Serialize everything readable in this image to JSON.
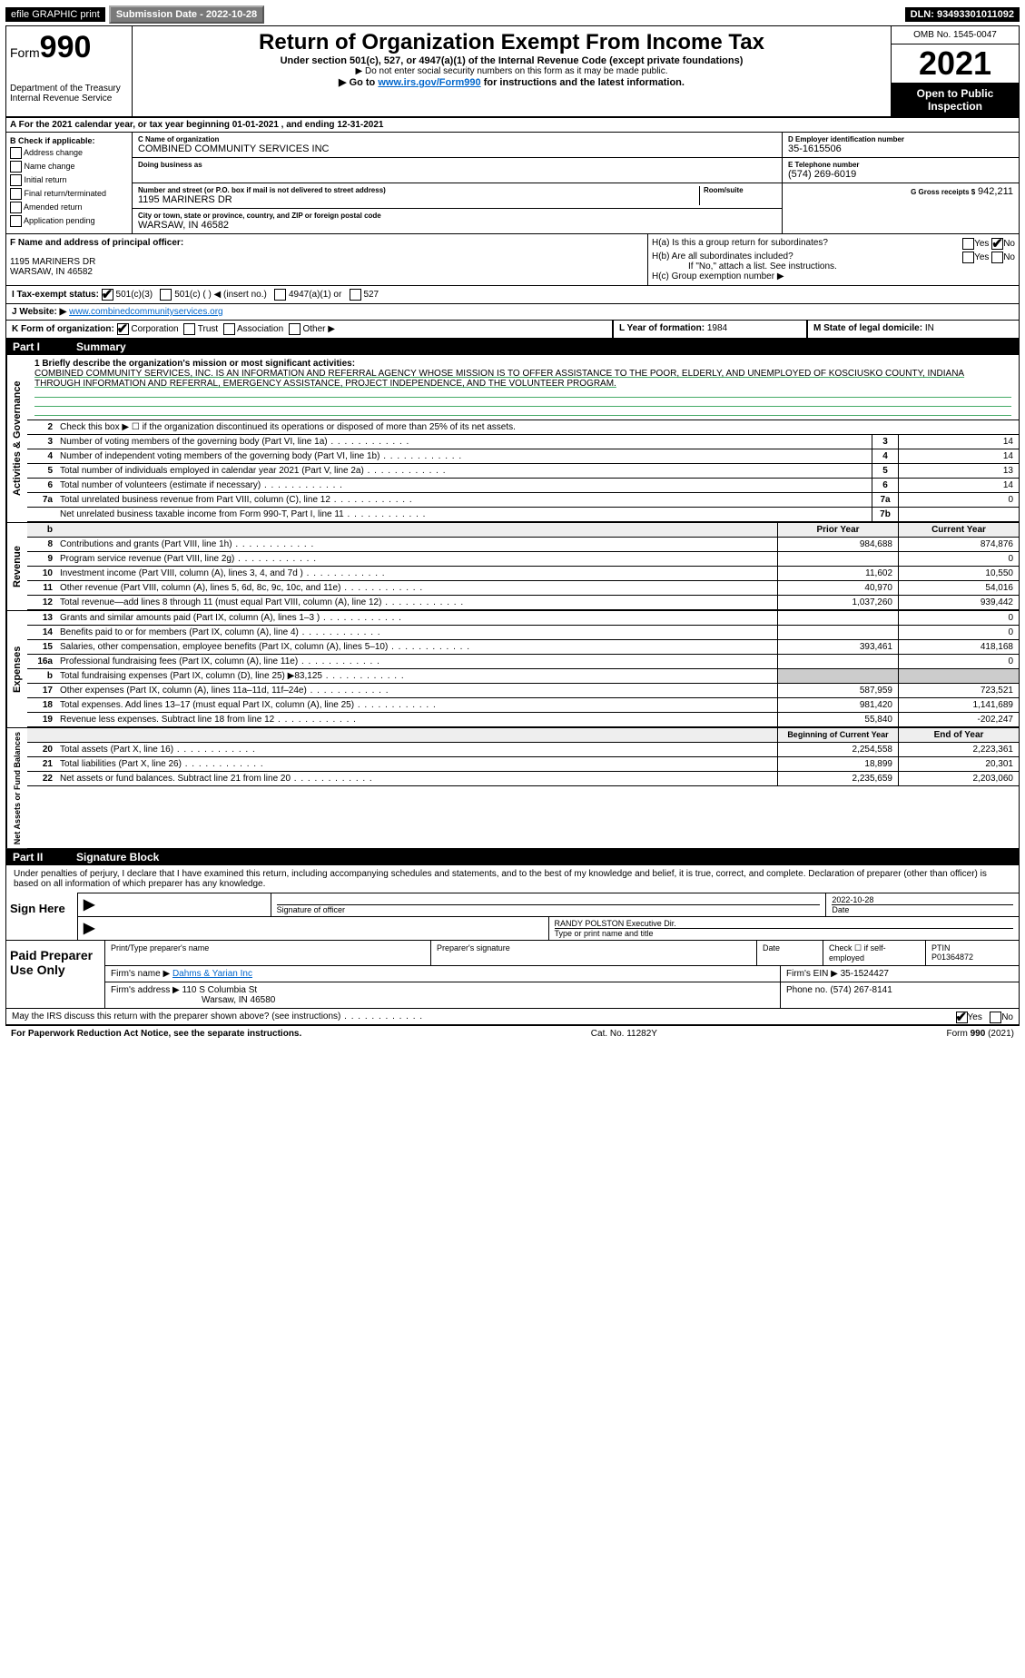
{
  "topbar": {
    "efile": "efile GRAPHIC print",
    "submission_btn": "Submission Date - 2022-10-28",
    "dln": "DLN: 93493301011092"
  },
  "header": {
    "form_prefix": "Form",
    "form_num": "990",
    "dept": "Department of the Treasury",
    "irs": "Internal Revenue Service",
    "title": "Return of Organization Exempt From Income Tax",
    "subtitle": "Under section 501(c), 527, or 4947(a)(1) of the Internal Revenue Code (except private foundations)",
    "note1": "▶ Do not enter social security numbers on this form as it may be made public.",
    "note2_prefix": "▶ Go to ",
    "note2_link": "www.irs.gov/Form990",
    "note2_suffix": " for instructions and the latest information.",
    "omb": "OMB No. 1545-0047",
    "year": "2021",
    "open_public": "Open to Public Inspection"
  },
  "section_a": "A For the 2021 calendar year, or tax year beginning 01-01-2021    , and ending 12-31-2021",
  "box_b": {
    "title": "B Check if applicable:",
    "items": [
      "Address change",
      "Name change",
      "Initial return",
      "Final return/terminated",
      "Amended return",
      "Application pending"
    ]
  },
  "box_c": {
    "label_name": "C Name of organization",
    "name": "COMBINED COMMUNITY SERVICES INC",
    "dba_label": "Doing business as",
    "addr_label": "Number and street (or P.O. box if mail is not delivered to street address)",
    "room_label": "Room/suite",
    "addr": "1195 MARINERS DR",
    "city_label": "City or town, state or province, country, and ZIP or foreign postal code",
    "city": "WARSAW, IN  46582"
  },
  "box_d": {
    "label": "D Employer identification number",
    "val": "35-1615506"
  },
  "box_e": {
    "label": "E Telephone number",
    "val": "(574) 269-6019"
  },
  "box_g": {
    "label": "G Gross receipts $",
    "val": "942,211"
  },
  "box_f": {
    "label": "F Name and address of principal officer:",
    "line1": "1195 MARINERS DR",
    "line2": "WARSAW, IN  46582"
  },
  "box_h": {
    "ha": "H(a)  Is this a group return for subordinates?",
    "hb": "H(b)  Are all subordinates included?",
    "hb_note": "If \"No,\" attach a list. See instructions.",
    "hc": "H(c)  Group exemption number ▶",
    "yes": "Yes",
    "no": "No"
  },
  "box_i": {
    "label": "I   Tax-exempt status:",
    "opts": [
      "501(c)(3)",
      "501(c) (   ) ◀ (insert no.)",
      "4947(a)(1) or",
      "527"
    ]
  },
  "box_j": {
    "label": "J   Website: ▶",
    "val": "www.combinedcommunityservices.org"
  },
  "box_k": {
    "label": "K Form of organization:",
    "opts": [
      "Corporation",
      "Trust",
      "Association",
      "Other ▶"
    ]
  },
  "box_l": {
    "label": "L Year of formation:",
    "val": "1984"
  },
  "box_m": {
    "label": "M State of legal domicile:",
    "val": "IN"
  },
  "part1": {
    "num": "Part I",
    "title": "Summary"
  },
  "mission": {
    "label": "1 Briefly describe the organization's mission or most significant activities:",
    "text": "COMBINED COMMUNITY SERVICES, INC. IS AN INFORMATION AND REFERRAL AGENCY WHOSE MISSION IS TO OFFER ASSISTANCE TO THE POOR, ELDERLY, AND UNEMPLOYED OF KOSCIUSKO COUNTY, INDIANA THROUGH INFORMATION AND REFERRAL, EMERGENCY ASSISTANCE, PROJECT INDEPENDENCE, AND THE VOLUNTEER PROGRAM."
  },
  "sidelabels": {
    "activities": "Activities & Governance",
    "revenue": "Revenue",
    "expenses": "Expenses",
    "netassets": "Net Assets or Fund Balances"
  },
  "gov_rows": [
    {
      "n": "2",
      "desc": "Check this box ▶ ☐  if the organization discontinued its operations or disposed of more than 25% of its net assets."
    },
    {
      "n": "3",
      "desc": "Number of voting members of the governing body (Part VI, line 1a)",
      "box": "3",
      "val": "14"
    },
    {
      "n": "4",
      "desc": "Number of independent voting members of the governing body (Part VI, line 1b)",
      "box": "4",
      "val": "14"
    },
    {
      "n": "5",
      "desc": "Total number of individuals employed in calendar year 2021 (Part V, line 2a)",
      "box": "5",
      "val": "13"
    },
    {
      "n": "6",
      "desc": "Total number of volunteers (estimate if necessary)",
      "box": "6",
      "val": "14"
    },
    {
      "n": "7a",
      "desc": "Total unrelated business revenue from Part VIII, column (C), line 12",
      "box": "7a",
      "val": "0"
    },
    {
      "n": "",
      "desc": "Net unrelated business taxable income from Form 990-T, Part I, line 11",
      "box": "7b",
      "val": ""
    }
  ],
  "col_hdr": {
    "b": "b",
    "prior": "Prior Year",
    "current": "Current Year"
  },
  "rev_rows": [
    {
      "n": "8",
      "desc": "Contributions and grants (Part VIII, line 1h)",
      "prior": "984,688",
      "cur": "874,876"
    },
    {
      "n": "9",
      "desc": "Program service revenue (Part VIII, line 2g)",
      "prior": "",
      "cur": "0"
    },
    {
      "n": "10",
      "desc": "Investment income (Part VIII, column (A), lines 3, 4, and 7d )",
      "prior": "11,602",
      "cur": "10,550"
    },
    {
      "n": "11",
      "desc": "Other revenue (Part VIII, column (A), lines 5, 6d, 8c, 9c, 10c, and 11e)",
      "prior": "40,970",
      "cur": "54,016"
    },
    {
      "n": "12",
      "desc": "Total revenue—add lines 8 through 11 (must equal Part VIII, column (A), line 12)",
      "prior": "1,037,260",
      "cur": "939,442"
    }
  ],
  "exp_rows": [
    {
      "n": "13",
      "desc": "Grants and similar amounts paid (Part IX, column (A), lines 1–3 )",
      "prior": "",
      "cur": "0"
    },
    {
      "n": "14",
      "desc": "Benefits paid to or for members (Part IX, column (A), line 4)",
      "prior": "",
      "cur": "0"
    },
    {
      "n": "15",
      "desc": "Salaries, other compensation, employee benefits (Part IX, column (A), lines 5–10)",
      "prior": "393,461",
      "cur": "418,168"
    },
    {
      "n": "16a",
      "desc": "Professional fundraising fees (Part IX, column (A), line 11e)",
      "prior": "",
      "cur": "0"
    },
    {
      "n": "b",
      "desc": "Total fundraising expenses (Part IX, column (D), line 25) ▶83,125",
      "prior": "",
      "cur": ""
    },
    {
      "n": "17",
      "desc": "Other expenses (Part IX, column (A), lines 11a–11d, 11f–24e)",
      "prior": "587,959",
      "cur": "723,521"
    },
    {
      "n": "18",
      "desc": "Total expenses. Add lines 13–17 (must equal Part IX, column (A), line 25)",
      "prior": "981,420",
      "cur": "1,141,689"
    },
    {
      "n": "19",
      "desc": "Revenue less expenses. Subtract line 18 from line 12",
      "prior": "55,840",
      "cur": "-202,247"
    }
  ],
  "net_hdr": {
    "beg": "Beginning of Current Year",
    "end": "End of Year"
  },
  "net_rows": [
    {
      "n": "20",
      "desc": "Total assets (Part X, line 16)",
      "prior": "2,254,558",
      "cur": "2,223,361"
    },
    {
      "n": "21",
      "desc": "Total liabilities (Part X, line 26)",
      "prior": "18,899",
      "cur": "20,301"
    },
    {
      "n": "22",
      "desc": "Net assets or fund balances. Subtract line 21 from line 20",
      "prior": "2,235,659",
      "cur": "2,203,060"
    }
  ],
  "part2": {
    "num": "Part II",
    "title": "Signature Block"
  },
  "sig": {
    "decl": "Under penalties of perjury, I declare that I have examined this return, including accompanying schedules and statements, and to the best of my knowledge and belief, it is true, correct, and complete. Declaration of preparer (other than officer) is based on all information of which preparer has any knowledge.",
    "sign_here": "Sign Here",
    "date": "2022-10-28",
    "sig_officer": "Signature of officer",
    "date_label": "Date",
    "name": "RANDY POLSTON  Executive Dir.",
    "name_label": "Type or print name and title"
  },
  "prep": {
    "title": "Paid Preparer Use Only",
    "h1": "Print/Type preparer's name",
    "h2": "Preparer's signature",
    "h3": "Date",
    "h4_check": "Check ☐ if self-employed",
    "h5": "PTIN",
    "ptin": "P01364872",
    "firm_name_l": "Firm's name    ▶",
    "firm_name": "Dahms & Yarian Inc",
    "firm_ein_l": "Firm's EIN ▶",
    "firm_ein": "35-1524427",
    "firm_addr_l": "Firm's address ▶",
    "firm_addr1": "110 S Columbia St",
    "firm_addr2": "Warsaw, IN  46580",
    "phone_l": "Phone no.",
    "phone": "(574) 267-8141"
  },
  "discuss": {
    "q": "May the IRS discuss this return with the preparer shown above? (see instructions)",
    "yes": "Yes",
    "no": "No"
  },
  "footer": {
    "left": "For Paperwork Reduction Act Notice, see the separate instructions.",
    "mid": "Cat. No. 11282Y",
    "right": "Form 990 (2021)"
  }
}
